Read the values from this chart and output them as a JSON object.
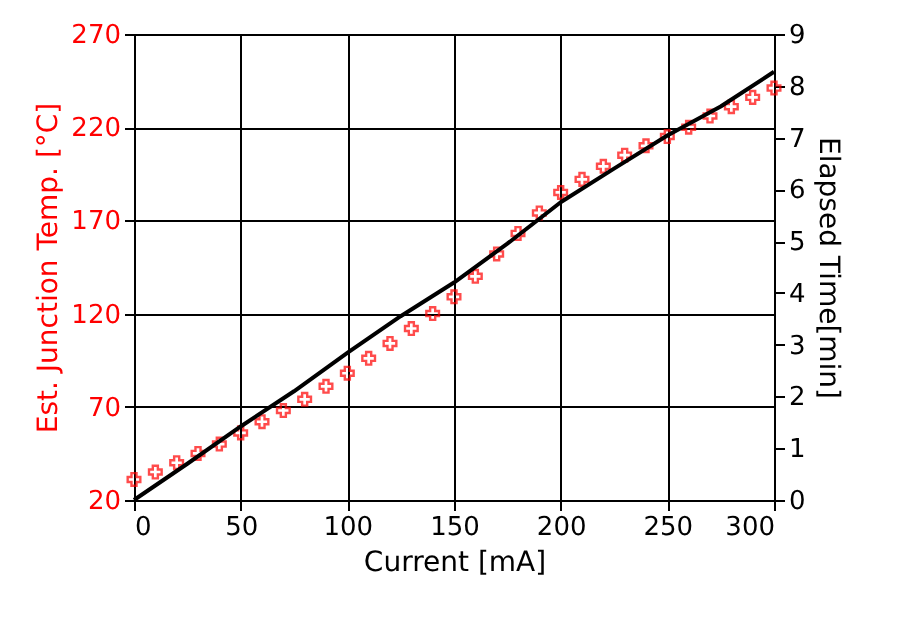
{
  "chart_data": {
    "type": "line",
    "xlabel": "Current [mA]",
    "ylabel": "Est. Junction Temp. [°C]",
    "y2label": "Elapsed Time[min]",
    "xlim": [
      0,
      300
    ],
    "xticks": [
      0,
      50,
      100,
      150,
      200,
      250,
      300
    ],
    "ylim": [
      20,
      270
    ],
    "yticks": [
      20,
      70,
      120,
      170,
      220,
      270
    ],
    "y2lim": [
      0,
      9
    ],
    "y2ticks": [
      0,
      1,
      2,
      3,
      4,
      5,
      6,
      7,
      8,
      9
    ],
    "grid": true,
    "series": [
      {
        "type": "scatter",
        "marker": "cross",
        "color": "#ff0000",
        "x": [
          0,
          10,
          20,
          30,
          40,
          50,
          60,
          70,
          80,
          90,
          100,
          110,
          120,
          130,
          140,
          150,
          160,
          170,
          180,
          190,
          200,
          210,
          220,
          230,
          240,
          250,
          260,
          270,
          280,
          290,
          300
        ],
        "values": [
          31,
          35,
          40,
          45,
          50,
          56,
          62,
          68,
          74,
          81,
          88,
          96,
          104,
          112,
          120,
          129,
          140,
          152,
          163,
          174,
          185,
          192,
          199,
          205,
          210,
          215,
          220,
          226,
          231,
          236,
          241
        ]
      },
      {
        "type": "line",
        "axis": "y2",
        "color": "#000000",
        "x": [
          0,
          25,
          50,
          75,
          100,
          125,
          150,
          175,
          200,
          225,
          250,
          275,
          300
        ],
        "values": [
          0,
          0.7,
          1.42,
          2.1,
          2.84,
          3.55,
          4.2,
          4.95,
          5.75,
          6.4,
          7.04,
          7.6,
          8.27
        ]
      }
    ]
  }
}
